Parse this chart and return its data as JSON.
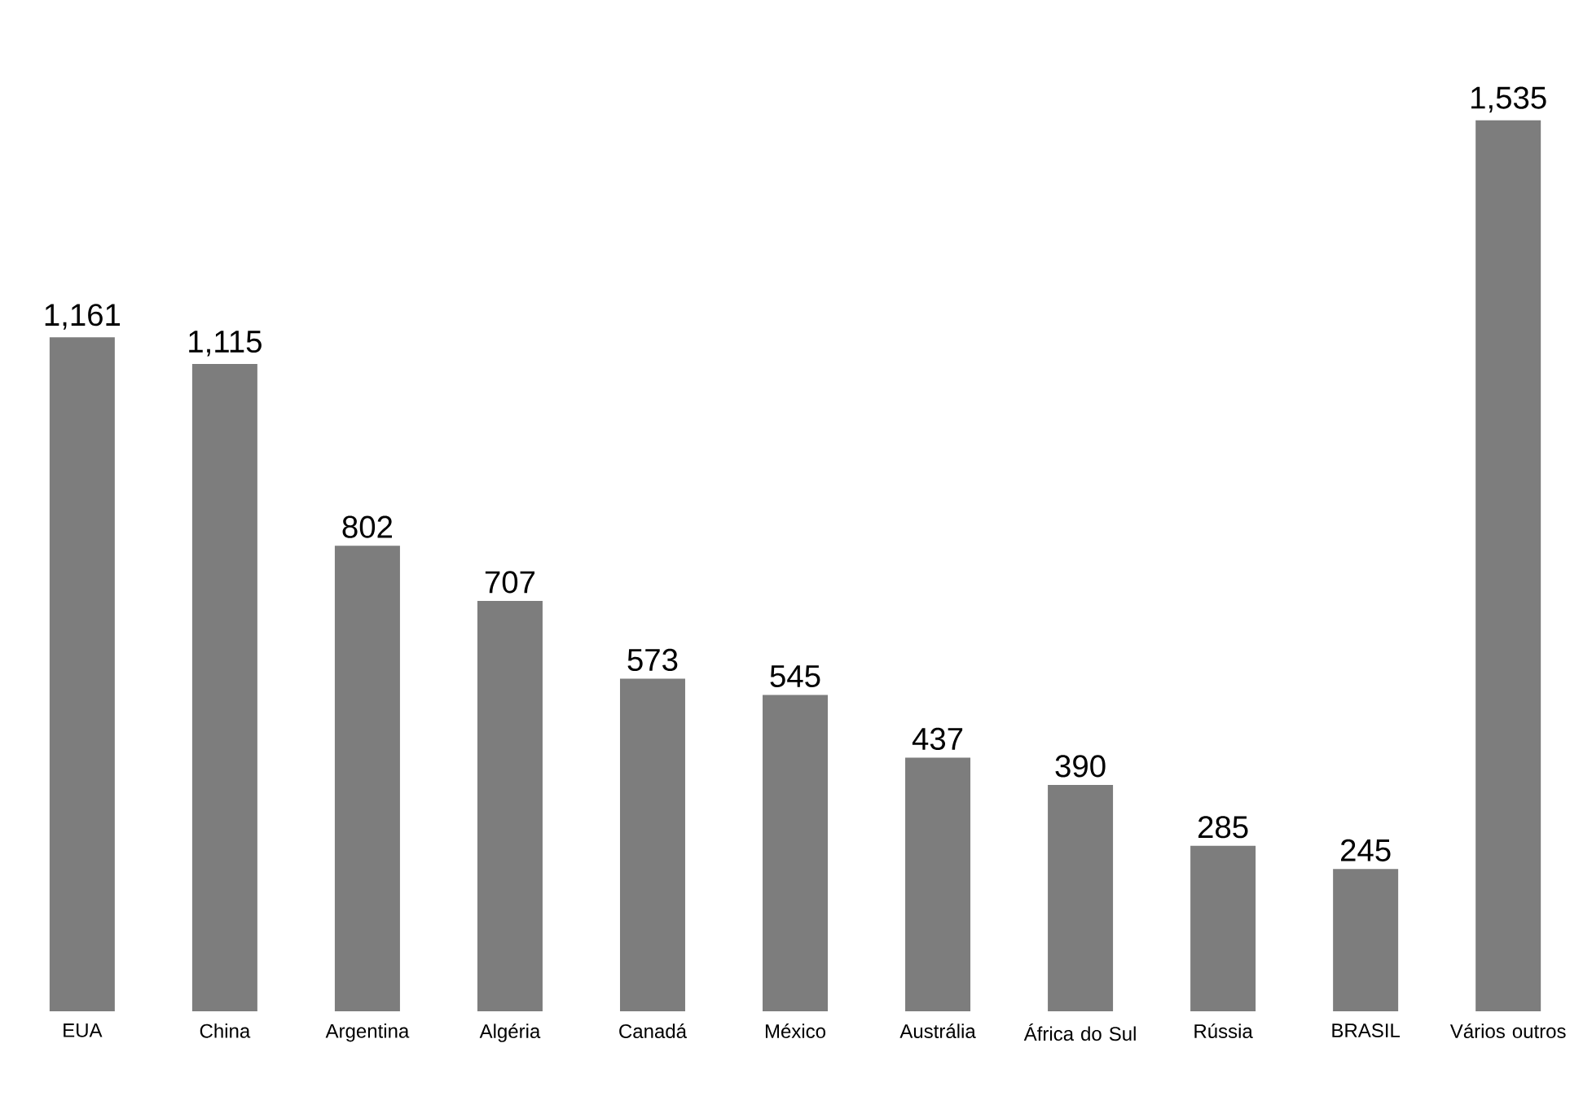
{
  "chart_data": {
    "type": "bar",
    "categories": [
      "EUA",
      "China",
      "Argentina",
      "Algéria",
      "Canadá",
      "México",
      "Austrália",
      "África do Sul",
      "Rússia",
      "BRASIL",
      "Vários outros"
    ],
    "values": [
      1161,
      1115,
      802,
      707,
      573,
      545,
      437,
      390,
      285,
      245,
      1535
    ],
    "value_labels": [
      "1,161",
      "1,115",
      "802",
      "707",
      "573",
      "545",
      "437",
      "390",
      "285",
      "245",
      "1,535"
    ],
    "color": "#7d7d7d"
  }
}
